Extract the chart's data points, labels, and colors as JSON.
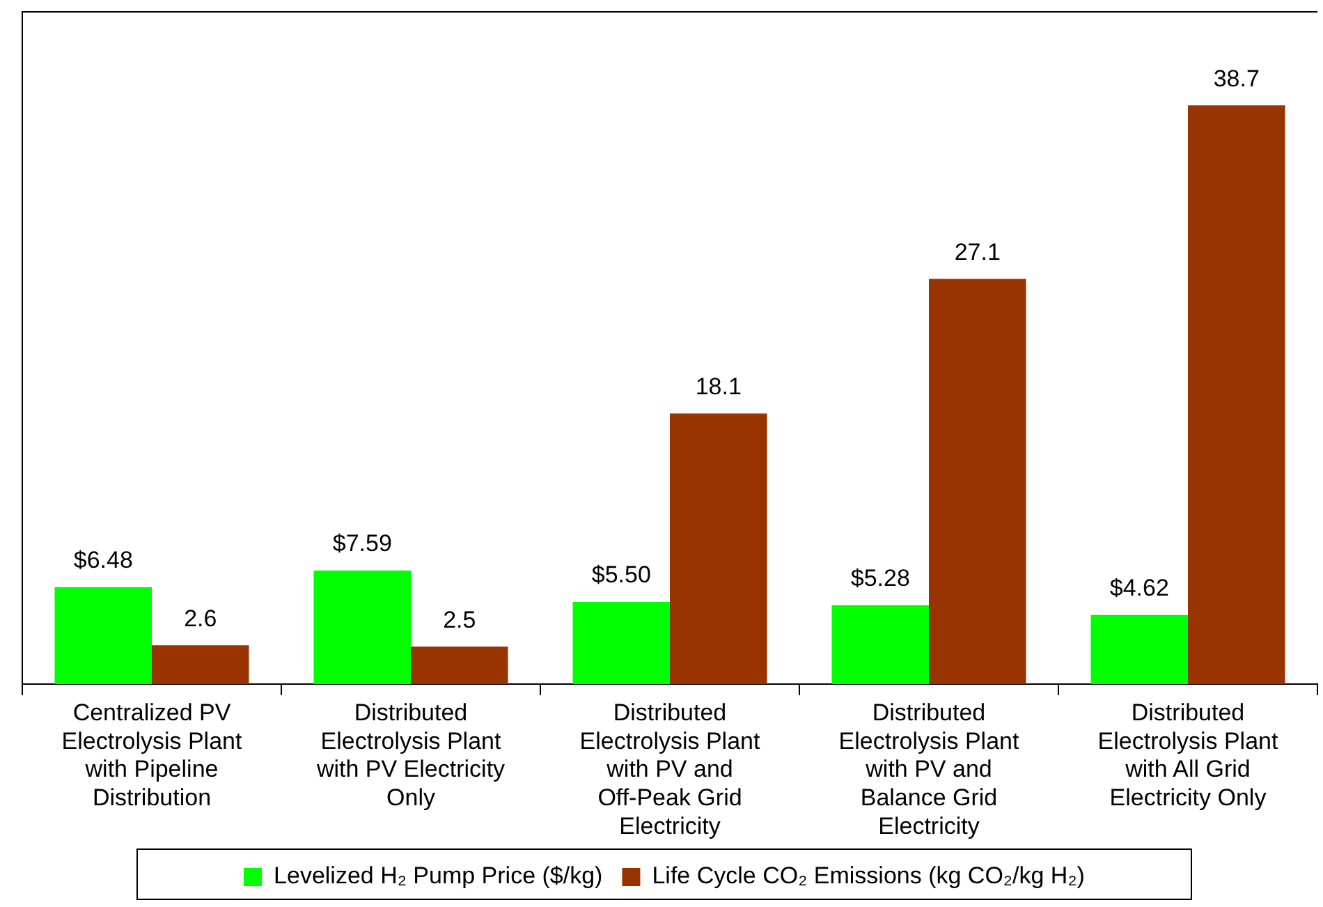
{
  "chart_data": {
    "type": "bar",
    "categories": [
      "Centralized PV Electrolysis Plant with Pipeline Distribution",
      "Distributed Electrolysis Plant with PV Electricity Only",
      "Distributed Electrolysis Plant with PV and Off-Peak Grid Electricity",
      "Distributed Electrolysis Plant with PV and Balance Grid Electricity",
      "Distributed Electrolysis Plant with All Grid Electricity Only"
    ],
    "series": [
      {
        "name": "Levelized H₂ Pump Price ($/kg)",
        "color": "#00ff00",
        "values": [
          6.48,
          7.59,
          5.5,
          5.28,
          4.62
        ],
        "value_labels": [
          "$6.48",
          "$7.59",
          "$5.50",
          "$5.28",
          "$4.62"
        ]
      },
      {
        "name": "Life Cycle CO₂ Emissions (kg CO₂/kg H₂)",
        "color": "#993300",
        "values": [
          2.6,
          2.5,
          18.1,
          27.1,
          38.7
        ],
        "value_labels": [
          "2.6",
          "2.5",
          "18.1",
          "27.1",
          "38.7"
        ]
      }
    ],
    "legend": "bottom",
    "grid": false
  }
}
